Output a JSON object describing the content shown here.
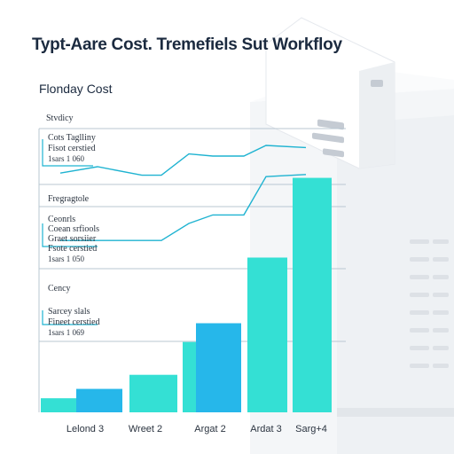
{
  "title": "Typt-Aare Cost. Tremefiels Sut Workfloy",
  "subtitle": "Flonday Cost",
  "annotations": {
    "stvdicy": "Stvdicy",
    "block1": [
      "Cots Taglliny",
      "Fisot cerstied",
      "1sars 1 060"
    ],
    "fregragtole": "Fregragtole",
    "block2": [
      "Ceonrls",
      "Coean srfiools",
      "Graet sorsiier",
      "Fsote cerstied",
      "1sars 1 050"
    ],
    "cency": "Cency",
    "block3": [
      "Sarcey slals",
      "Fineet cerstied",
      "1sars 1 069"
    ]
  },
  "chart_data": {
    "type": "bar",
    "title": "Typt-Aare Cost. Tremefiels Sut Workfloy",
    "subtitle": "Flonday Cost",
    "categories": [
      "Lelond 3",
      "Wreet 2",
      "Argat 2",
      "Ardat 3",
      "Sarg+4"
    ],
    "bars": [
      {
        "category": "Lelond 3",
        "value": 3,
        "color": "#34e0d4"
      },
      {
        "category": "Lelond 3",
        "value": 5,
        "color": "#26b7ea"
      },
      {
        "category": "Wreet 2",
        "value": 8,
        "color": "#34e0d4"
      },
      {
        "category": "Argat 2",
        "value": 15,
        "color": "#34e0d4"
      },
      {
        "category": "Argat 2",
        "value": 19,
        "color": "#26b7ea"
      },
      {
        "category": "Ardat 3",
        "value": 33,
        "color": "#34e0d4"
      },
      {
        "category": "Sarg+4",
        "value": 50,
        "color": "#34e0d4"
      }
    ],
    "ylim": [
      0,
      52
    ],
    "series": [
      {
        "x": [
          0,
          1,
          2,
          3,
          4,
          5,
          6,
          7,
          8
        ],
        "y": [
          7,
          10,
          6,
          6,
          16,
          15,
          15,
          20,
          19
        ]
      },
      {
        "x": [
          0,
          1,
          2,
          3,
          4,
          5,
          6,
          7,
          8
        ],
        "y": [
          2,
          2,
          2,
          2,
          10,
          14,
          14,
          32,
          33
        ]
      }
    ],
    "colors": {
      "primary": "#34e0d4",
      "secondary": "#26b7ea",
      "line": "#1fb3d1"
    }
  }
}
